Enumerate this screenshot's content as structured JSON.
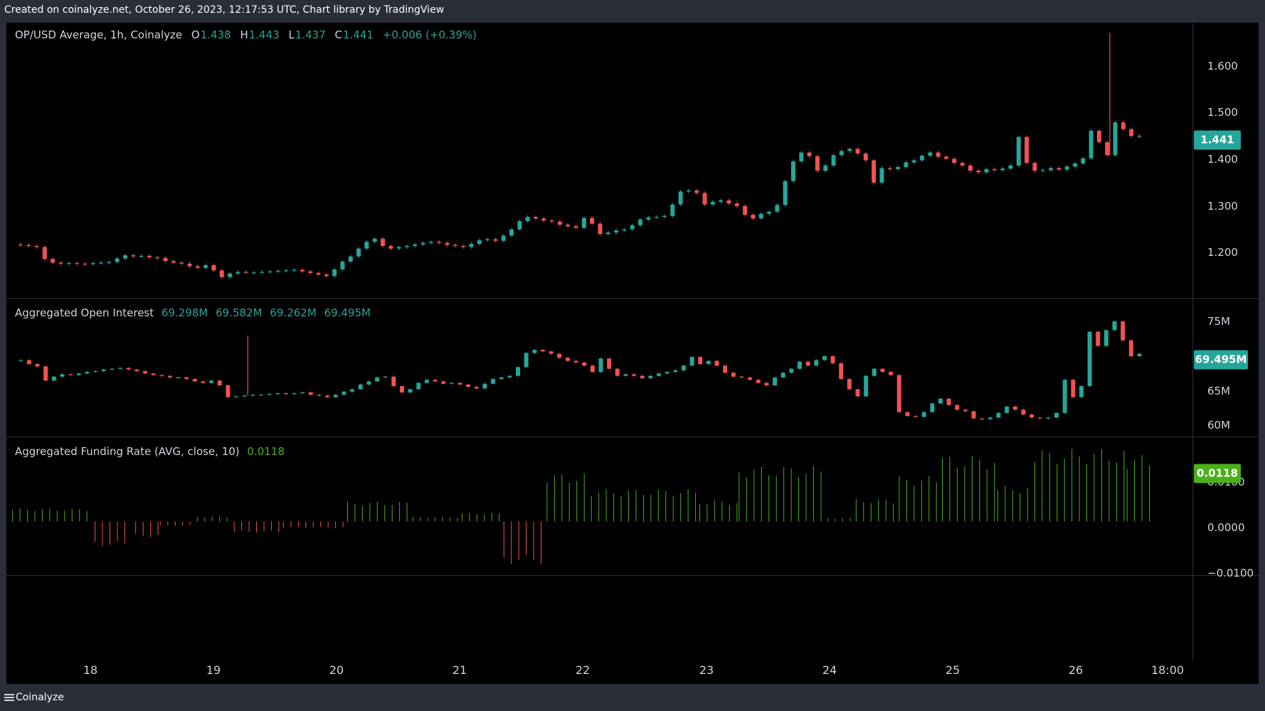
{
  "header": {
    "caption": "Created on coinalyze.net, October 26, 2023, 12:17:53 UTC, Chart library by TradingView"
  },
  "footer": {
    "brand": "Coinalyze"
  },
  "colors": {
    "up": "#26a69a",
    "down": "#ef5350",
    "fund_pos": "#4caf1c",
    "fund_neg": "#ef5350",
    "background": "#000000"
  },
  "chart_data": [
    {
      "type": "candlestick",
      "title": "OP/USD Average, 1h, Coinalyze",
      "ohlc_legend": {
        "o_label": "O",
        "o": "1.438",
        "h_label": "H",
        "h": "1.443",
        "l_label": "L",
        "l": "1.437",
        "c_label": "C",
        "c": "1.441",
        "change": "+0.006 (+0.39%)"
      },
      "last_value": "1.441",
      "y_ticks": [
        "1.600",
        "1.500",
        "1.400",
        "1.300",
        "1.200"
      ],
      "ylim": [
        1.13,
        1.66
      ],
      "x_ticks": [
        "18",
        "19",
        "20",
        "21",
        "22",
        "23",
        "24",
        "25",
        "26",
        "18:00"
      ],
      "x_range": [
        "2023-10-17 10:00",
        "2023-10-26 12:00"
      ],
      "close_path": [
        1.233,
        1.232,
        1.23,
        1.228,
        1.205,
        1.198,
        1.196,
        1.197,
        1.196,
        1.195,
        1.197,
        1.198,
        1.199,
        1.206,
        1.212,
        1.21,
        1.211,
        1.208,
        1.207,
        1.201,
        1.198,
        1.196,
        1.191,
        1.188,
        1.193,
        1.183,
        1.17,
        1.177,
        1.18,
        1.179,
        1.179,
        1.18,
        1.181,
        1.182,
        1.183,
        1.184,
        1.181,
        1.178,
        1.175,
        1.172,
        1.185,
        1.2,
        1.21,
        1.225,
        1.238,
        1.244,
        1.23,
        1.225,
        1.228,
        1.23,
        1.233,
        1.236,
        1.238,
        1.236,
        1.232,
        1.23,
        1.228,
        1.234,
        1.241,
        1.243,
        1.24,
        1.25,
        1.262,
        1.278,
        1.286,
        1.283,
        1.279,
        1.277,
        1.271,
        1.268,
        1.265,
        1.284,
        1.273,
        1.253,
        1.256,
        1.26,
        1.262,
        1.27,
        1.281,
        1.285,
        1.286,
        1.288,
        1.31,
        1.335,
        1.337,
        1.332,
        1.31,
        1.315,
        1.318,
        1.312,
        1.307,
        1.29,
        1.283,
        1.292,
        1.296,
        1.309,
        1.355,
        1.393,
        1.41,
        1.403,
        1.375,
        1.385,
        1.405,
        1.413,
        1.417,
        1.408,
        1.395,
        1.352,
        1.38,
        1.378,
        1.382,
        1.391,
        1.395,
        1.404,
        1.41,
        1.402,
        1.398,
        1.39,
        1.385,
        1.375,
        1.372,
        1.378,
        1.376,
        1.379,
        1.385,
        1.44,
        1.39,
        1.375,
        1.376,
        1.38,
        1.377,
        1.383,
        1.389,
        1.399,
        1.452,
        1.43,
        1.405,
        1.468,
        1.455,
        1.442,
        1.441
      ],
      "high_wicks": [
        {
          "day_offset": 8.33,
          "value": 1.64
        }
      ]
    },
    {
      "type": "candlestick",
      "title": "Aggregated Open Interest",
      "legend_values": [
        "69.298M",
        "69.582M",
        "69.262M",
        "69.495M"
      ],
      "last_value": "69.495M",
      "y_ticks": [
        "75M",
        "65M",
        "60M"
      ],
      "ylim": [
        59,
        76.5
      ],
      "unit": "M",
      "close_path": [
        68.6,
        68.7,
        68.2,
        67.9,
        66.1,
        66.6,
        66.9,
        66.8,
        67.0,
        67.2,
        67.3,
        67.5,
        67.6,
        67.7,
        67.5,
        67.3,
        67.0,
        66.8,
        66.7,
        66.5,
        66.5,
        66.3,
        66.0,
        65.8,
        66.1,
        65.5,
        64.0,
        64.1,
        64.2,
        64.3,
        64.3,
        64.4,
        64.5,
        64.4,
        64.5,
        64.6,
        64.3,
        64.2,
        64.0,
        64.3,
        64.7,
        65.0,
        65.6,
        66.0,
        66.5,
        66.6,
        65.4,
        64.6,
        65.0,
        65.8,
        66.2,
        66.0,
        65.7,
        65.8,
        65.6,
        65.3,
        65.1,
        65.7,
        66.3,
        66.5,
        66.7,
        67.8,
        69.6,
        70.0,
        69.8,
        69.5,
        69.0,
        68.6,
        68.4,
        68.0,
        67.2,
        68.9,
        67.6,
        66.7,
        66.9,
        66.7,
        66.4,
        66.7,
        67.0,
        67.2,
        67.4,
        68.0,
        69.1,
        68.2,
        68.6,
        68.0,
        67.1,
        66.6,
        66.5,
        66.2,
        65.8,
        65.5,
        66.5,
        67.1,
        67.6,
        68.5,
        68.0,
        68.7,
        69.2,
        68.3,
        66.3,
        65.0,
        64.1,
        66.7,
        67.6,
        67.2,
        66.8,
        62.1,
        61.6,
        61.5,
        62.1,
        63.2,
        63.8,
        63.0,
        62.4,
        62.2,
        61.3,
        61.2,
        61.4,
        62.0,
        62.8,
        62.4,
        61.8,
        61.4,
        61.3,
        61.4,
        62.0,
        66.2,
        64.0,
        65.4,
        72.3,
        70.5,
        72.5,
        73.6,
        71.2,
        69.2,
        69.5
      ],
      "high_wicks": [
        {
          "day_offset": 1.33,
          "value": 71.8
        }
      ]
    },
    {
      "type": "bar",
      "title": "Aggregated Funding Rate (AVG, close, 10)",
      "legend_value": "0.0118",
      "last_value": "0.0118",
      "y_ticks": [
        "0.0100",
        "0.0000",
        "−0.0100"
      ],
      "ylim": [
        -0.0106,
        0.0166
      ],
      "segments": [
        {
          "from": 0.0,
          "to": 0.65,
          "value": 0.0023
        },
        {
          "from": 0.67,
          "to": 0.95,
          "value": -0.0044
        },
        {
          "from": 1.0,
          "to": 1.2,
          "value": -0.0028
        },
        {
          "from": 1.2,
          "to": 1.5,
          "value": -0.0008
        },
        {
          "from": 1.5,
          "to": 1.78,
          "value": 0.0009
        },
        {
          "from": 1.8,
          "to": 2.2,
          "value": -0.002
        },
        {
          "from": 2.2,
          "to": 2.7,
          "value": -0.0012
        },
        {
          "from": 2.72,
          "to": 3.25,
          "value": 0.0035
        },
        {
          "from": 3.25,
          "to": 3.65,
          "value": 0.0008
        },
        {
          "from": 3.65,
          "to": 3.98,
          "value": 0.0015
        },
        {
          "from": 3.99,
          "to": 4.32,
          "value": -0.0075
        },
        {
          "from": 4.34,
          "to": 4.7,
          "value": 0.0085
        },
        {
          "from": 4.7,
          "to": 5.55,
          "value": 0.0057
        },
        {
          "from": 5.58,
          "to": 5.9,
          "value": 0.0037
        },
        {
          "from": 5.9,
          "to": 6.6,
          "value": 0.0098
        },
        {
          "from": 6.62,
          "to": 6.85,
          "value": 0.0006
        },
        {
          "from": 6.85,
          "to": 7.2,
          "value": 0.004
        },
        {
          "from": 7.2,
          "to": 7.55,
          "value": 0.008
        },
        {
          "from": 7.55,
          "to": 8.0,
          "value": 0.0117
        },
        {
          "from": 8.0,
          "to": 8.3,
          "value": 0.0063
        },
        {
          "from": 8.3,
          "to": 9.05,
          "value": 0.0128
        },
        {
          "from": 9.05,
          "to": 9.28,
          "value": 0.0118
        }
      ]
    }
  ]
}
